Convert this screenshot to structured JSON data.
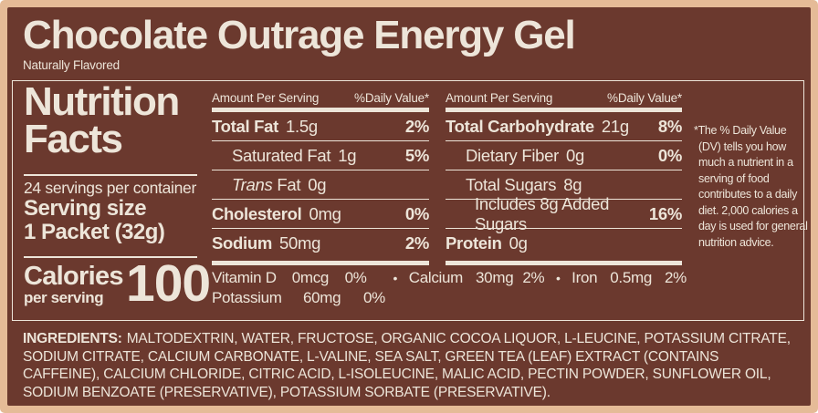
{
  "colors": {
    "background_brown": "#6B392E",
    "border_tan": "#E5BB97",
    "text_cream": "#EDE5D9"
  },
  "header": {
    "title": "Chocolate Outrage Energy Gel",
    "subtitle": "Naturally Flavored"
  },
  "panel": {
    "title_line1": "Nutrition",
    "title_line2": "Facts",
    "servings": "24 servings per container",
    "serving_size_label": "Serving size",
    "serving_size_value": "1 Packet (32g)",
    "calories_label": "Calories",
    "calories_sub": "per serving",
    "calories_value": "100"
  },
  "columns": [
    {
      "header_left": "Amount Per Serving",
      "header_right": "%Daily Value*",
      "rows": [
        {
          "label": "Total Fat",
          "amount": "1.5g",
          "dv": "2%"
        },
        {
          "label": "Saturated Fat",
          "amount": "1g",
          "dv": "5%"
        },
        {
          "label_italic": "Trans",
          "label": "Fat",
          "amount": "0g",
          "dv": ""
        },
        {
          "label": "Cholesterol",
          "amount": "0mg",
          "dv": "0%"
        },
        {
          "label": "Sodium",
          "amount": "50mg",
          "dv": "2%"
        }
      ]
    },
    {
      "header_left": "Amount Per Serving",
      "header_right": "%Daily Value*",
      "rows": [
        {
          "label": "Total Carbohydrate",
          "amount": "21g",
          "dv": "8%"
        },
        {
          "label": "Dietary Fiber",
          "amount": "0g",
          "dv": "0%"
        },
        {
          "label": "Total Sugars",
          "amount": "8g",
          "dv": ""
        },
        {
          "label": "Includes 8g Added Sugars",
          "amount": "",
          "dv": "16%"
        },
        {
          "label": "Protein",
          "amount": "0g",
          "dv": ""
        }
      ]
    }
  ],
  "micronutrients": {
    "bullet": "•",
    "line1": [
      {
        "name": "Vitamin D",
        "amount": "0mcg",
        "dv": "0%"
      },
      {
        "name": "Calcium",
        "amount": "30mg",
        "dv": "2%"
      },
      {
        "name": "Iron",
        "amount": "0.5mg",
        "dv": "2%"
      }
    ],
    "line2": [
      {
        "name": "Potassium",
        "amount": "60mg",
        "dv": "0%"
      }
    ]
  },
  "footnote": "*The % Daily Value (DV) tells you how much a nutrient in a serving of food contributes to a daily diet. 2,000 calories a day is used for general nutrition advice.",
  "ingredients": {
    "label": "INGREDIENTS:",
    "text": "MALTODEXTRIN, WATER, FRUCTOSE, ORGANIC COCOA LIQUOR, L-LEUCINE, POTASSIUM CITRATE, SODIUM CITRATE, CALCIUM CARBONATE, L-VALINE, SEA SALT, GREEN TEA (LEAF) EXTRACT (CONTAINS CAFFEINE), CALCIUM CHLORIDE, CITRIC ACID, L-ISOLEUCINE, MALIC ACID, PECTIN POWDER, SUNFLOWER OIL, SODIUM BENZOATE (PRESERVATIVE), POTASSIUM SORBATE (PRESERVATIVE)."
  }
}
